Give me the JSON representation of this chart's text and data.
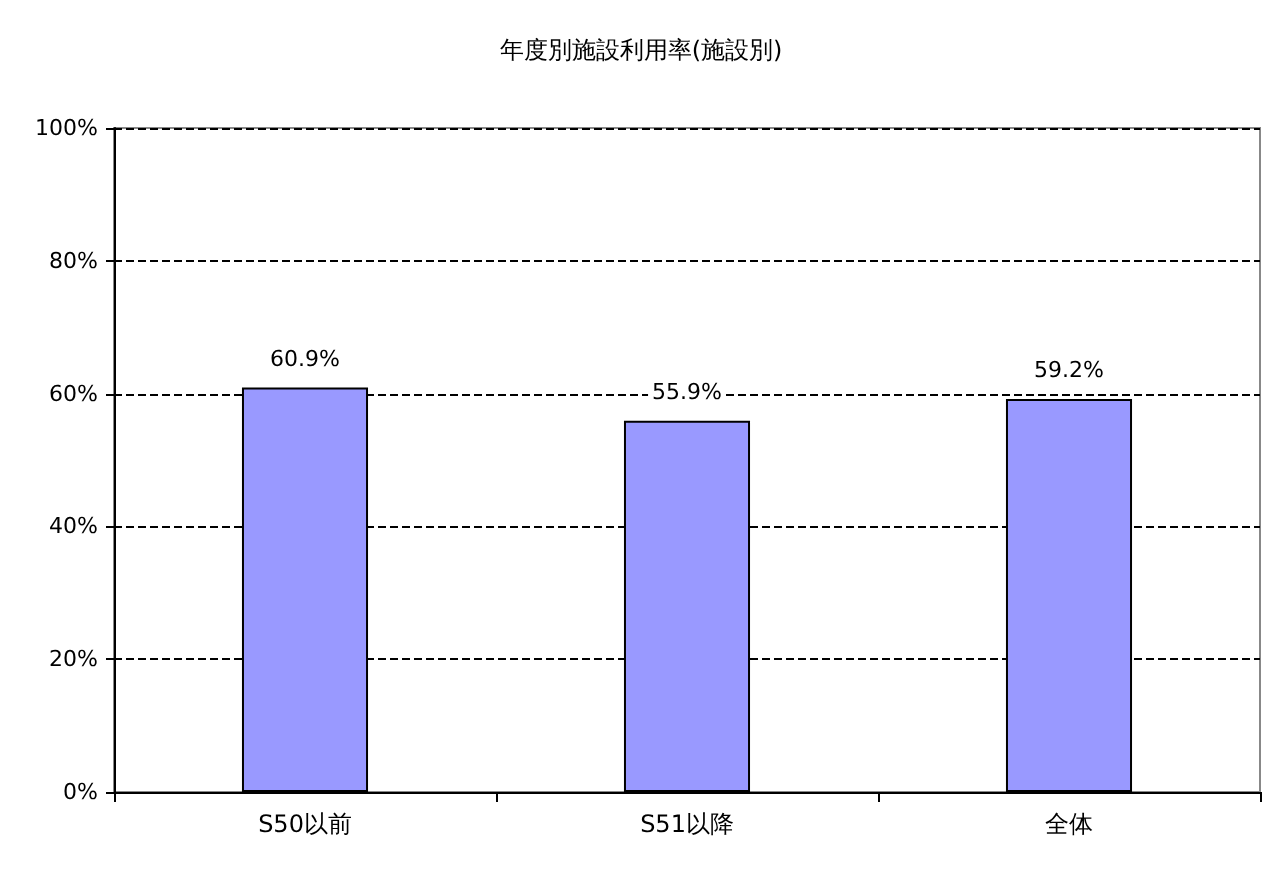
{
  "chart_data": {
    "type": "bar",
    "title": "年度別施設利用率(施設別)",
    "categories": [
      "S50以前",
      "S51以降",
      "全体"
    ],
    "values": [
      60.9,
      55.9,
      59.2
    ],
    "color": "#9999ff",
    "value_labels": [
      "60.9%",
      "55.9%",
      "59.2%"
    ],
    "ylim": [
      0,
      100
    ],
    "yticks": [
      {
        "value": 0,
        "label": "0%"
      },
      {
        "value": 20,
        "label": "20%"
      },
      {
        "value": 40,
        "label": "40%"
      },
      {
        "value": 60,
        "label": "60%"
      },
      {
        "value": 80,
        "label": "80%"
      },
      {
        "value": 100,
        "label": "100%"
      }
    ],
    "grid": "y"
  }
}
